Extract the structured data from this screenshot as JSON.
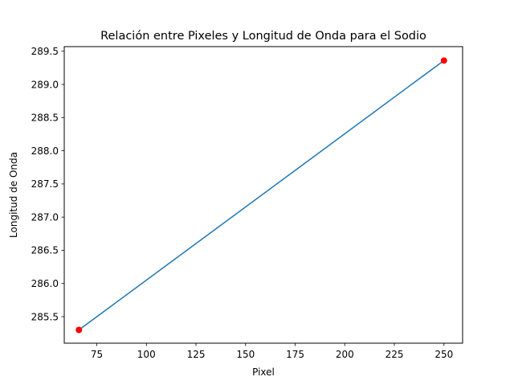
{
  "chart_data": {
    "type": "scatter",
    "title": "Relación entre Pixeles y Longitud de Onda para el Sodio",
    "xlabel": "Pixel",
    "ylabel": "Longitud de Onda",
    "xlim": [
      58.6,
      259.4
    ],
    "ylim": [
      285.1,
      289.57
    ],
    "xticks": [
      75,
      100,
      125,
      150,
      175,
      200,
      225,
      250
    ],
    "yticks": [
      285.5,
      286.0,
      286.5,
      287.0,
      287.5,
      288.0,
      288.5,
      289.0,
      289.5
    ],
    "tick_labels_x": [
      "75",
      "100",
      "125",
      "150",
      "175",
      "200",
      "225",
      "250"
    ],
    "tick_labels_y": [
      "285.5",
      "286.0",
      "286.5",
      "287.0",
      "287.5",
      "288.0",
      "288.5",
      "289.0",
      "289.5"
    ],
    "grid": false,
    "series": [
      {
        "kind": "scatter",
        "color": "#ff0000",
        "x": [
          66,
          250
        ],
        "y": [
          285.3,
          289.36
        ]
      },
      {
        "kind": "line",
        "color": "#1f77b4",
        "x": [
          66,
          250
        ],
        "y": [
          285.3,
          289.36
        ]
      }
    ]
  }
}
